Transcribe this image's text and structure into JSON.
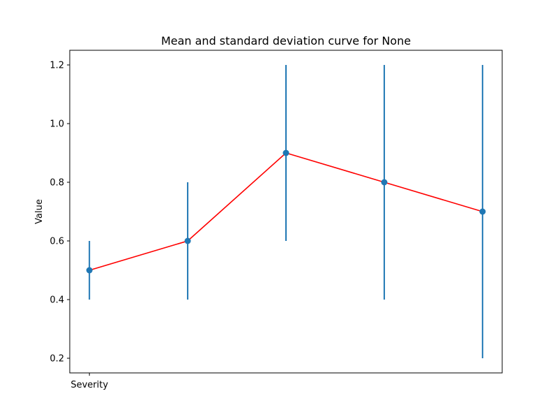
{
  "chart_data": {
    "type": "line",
    "title": "Mean and standard deviation curve for None",
    "xlabel": "",
    "ylabel": "Value",
    "x_tick_labels": [
      "Severity"
    ],
    "y_ticks": [
      0.2,
      0.4,
      0.6,
      0.8,
      1.0,
      1.2
    ],
    "y_tick_labels": [
      "0.2",
      "0.4",
      "0.6",
      "0.8",
      "1.0",
      "1.2"
    ],
    "ylim": [
      0.15,
      1.25
    ],
    "xlim": [
      -0.2,
      4.2
    ],
    "grid": false,
    "x": [
      0,
      1,
      2,
      3,
      4
    ],
    "series": [
      {
        "values": [
          0.5,
          0.6,
          0.9,
          0.8,
          0.7
        ],
        "error_low": [
          0.4,
          0.4,
          0.6,
          0.4,
          0.2
        ],
        "error_high": [
          0.6,
          0.8,
          1.2,
          1.2,
          1.2
        ],
        "line_color": "#ff0000",
        "marker_color": "#1f77b4",
        "errorbar_color": "#1f77b4"
      }
    ]
  }
}
